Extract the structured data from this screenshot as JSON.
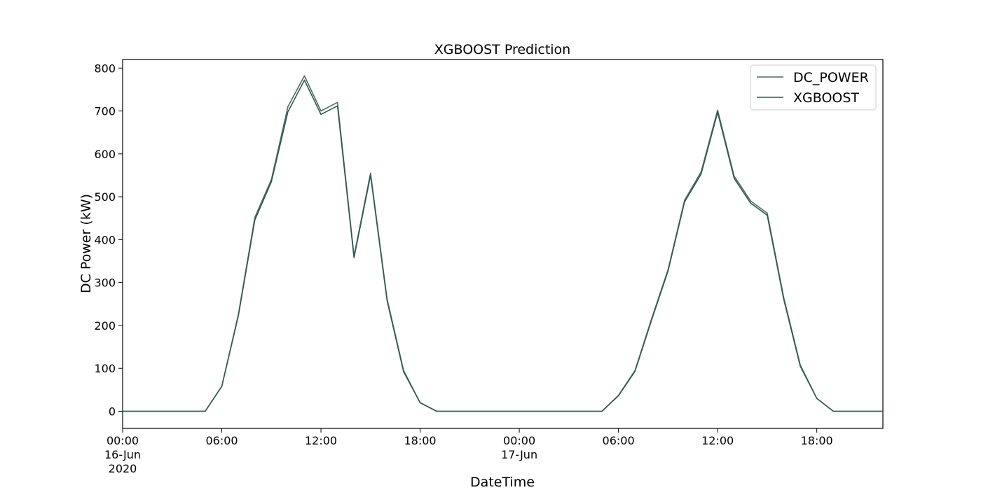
{
  "chart_data": {
    "type": "line",
    "title": "XGBOOST Prediction",
    "xlabel": "DateTime",
    "ylabel": "DC Power (kW)",
    "xlim": [
      "2020-06-16 00:00",
      "2020-06-17 22:00"
    ],
    "ylim": [
      -40,
      820
    ],
    "yticks": [
      0,
      100,
      200,
      300,
      400,
      500,
      600,
      700,
      800
    ],
    "xticks": [
      {
        "at": "2020-06-16 00:00",
        "lines": [
          "00:00",
          "16-Jun",
          "2020"
        ]
      },
      {
        "at": "2020-06-16 06:00",
        "lines": [
          "06:00"
        ]
      },
      {
        "at": "2020-06-16 12:00",
        "lines": [
          "12:00"
        ]
      },
      {
        "at": "2020-06-16 18:00",
        "lines": [
          "18:00"
        ]
      },
      {
        "at": "2020-06-17 00:00",
        "lines": [
          "00:00",
          "17-Jun"
        ]
      },
      {
        "at": "2020-06-17 06:00",
        "lines": [
          "06:00"
        ]
      },
      {
        "at": "2020-06-17 12:00",
        "lines": [
          "12:00"
        ]
      },
      {
        "at": "2020-06-17 18:00",
        "lines": [
          "18:00"
        ]
      }
    ],
    "x": [
      "2020-06-16 00:00",
      "2020-06-16 01:00",
      "2020-06-16 02:00",
      "2020-06-16 03:00",
      "2020-06-16 04:00",
      "2020-06-16 05:00",
      "2020-06-16 06:00",
      "2020-06-16 07:00",
      "2020-06-16 08:00",
      "2020-06-16 09:00",
      "2020-06-16 10:00",
      "2020-06-16 11:00",
      "2020-06-16 12:00",
      "2020-06-16 13:00",
      "2020-06-16 14:00",
      "2020-06-16 15:00",
      "2020-06-16 16:00",
      "2020-06-16 17:00",
      "2020-06-16 18:00",
      "2020-06-16 19:00",
      "2020-06-16 20:00",
      "2020-06-16 21:00",
      "2020-06-16 22:00",
      "2020-06-16 23:00",
      "2020-06-17 00:00",
      "2020-06-17 01:00",
      "2020-06-17 02:00",
      "2020-06-17 03:00",
      "2020-06-17 04:00",
      "2020-06-17 05:00",
      "2020-06-17 06:00",
      "2020-06-17 07:00",
      "2020-06-17 08:00",
      "2020-06-17 09:00",
      "2020-06-17 10:00",
      "2020-06-17 11:00",
      "2020-06-17 12:00",
      "2020-06-17 13:00",
      "2020-06-17 14:00",
      "2020-06-17 15:00",
      "2020-06-17 16:00",
      "2020-06-17 17:00",
      "2020-06-17 18:00",
      "2020-06-17 19:00",
      "2020-06-17 20:00",
      "2020-06-17 21:00",
      "2020-06-17 22:00"
    ],
    "series": [
      {
        "name": "DC_POWER",
        "color": "#506b68",
        "values": [
          0,
          0,
          0,
          0,
          0,
          0,
          58,
          225,
          452,
          540,
          710,
          782,
          700,
          720,
          362,
          555,
          262,
          95,
          20,
          0,
          0,
          0,
          0,
          0,
          0,
          0,
          0,
          0,
          0,
          0,
          37,
          95,
          215,
          330,
          492,
          558,
          702,
          548,
          490,
          462,
          265,
          108,
          30,
          0,
          0,
          0,
          0
        ]
      },
      {
        "name": "XGBOOST",
        "color": "#2f5a4f",
        "values": [
          0,
          0,
          0,
          0,
          0,
          0,
          58,
          222,
          446,
          535,
          698,
          772,
          692,
          712,
          358,
          550,
          258,
          92,
          20,
          0,
          0,
          0,
          0,
          0,
          0,
          0,
          0,
          0,
          0,
          0,
          36,
          93,
          212,
          327,
          488,
          553,
          697,
          543,
          485,
          457,
          261,
          105,
          30,
          0,
          0,
          0,
          0
        ]
      }
    ],
    "legend": "top-right",
    "grid": false
  }
}
